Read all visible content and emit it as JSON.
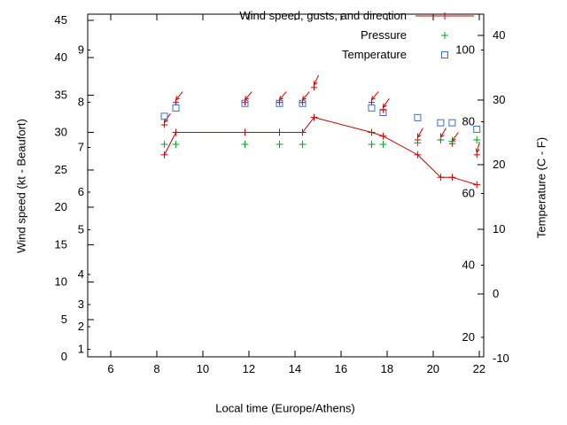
{
  "chart_data": {
    "type": "line",
    "title": "",
    "xlabel": "Local time (Europe/Athens)",
    "ylabel": "Wind speed (kt - Beaufort)",
    "y2label": "Temperature (C - F)",
    "xlim": [
      5,
      22.2
    ],
    "x_ticks": [
      6,
      8,
      10,
      12,
      14,
      16,
      18,
      20,
      22
    ],
    "ylim_kt": [
      0,
      45.8
    ],
    "kt_ticks": [
      0,
      5,
      10,
      15,
      20,
      25,
      30,
      35,
      40,
      45
    ],
    "beaufort_ticks": [
      {
        "b": "1",
        "kt": 1
      },
      {
        "b": "2",
        "kt": 4
      },
      {
        "b": "3",
        "kt": 7
      },
      {
        "b": "4",
        "kt": 11
      },
      {
        "b": "5",
        "kt": 17
      },
      {
        "b": "6",
        "kt": 22
      },
      {
        "b": "7",
        "kt": 28
      },
      {
        "b": "8",
        "kt": 34
      },
      {
        "b": "9",
        "kt": 41
      }
    ],
    "ylim_c": [
      -9.7,
      43.3
    ],
    "c_ticks": [
      40,
      30,
      20,
      10,
      0,
      -10
    ],
    "f_ticks": [
      100,
      80,
      60,
      40,
      20
    ],
    "grid": false,
    "legend_position": "top-right-inside",
    "colors": {
      "wind": "#d00000",
      "pressure": "#00a020",
      "temperature": "#3c6fd1",
      "axis": "#000000",
      "background": "#ffffff"
    },
    "series": {
      "wind": {
        "name": "Wind speed, gusts, and direction",
        "x": [
          8.33,
          8.83,
          11.83,
          13.33,
          14.33,
          14.83,
          17.33,
          17.83,
          19.33,
          20.33,
          20.83,
          21.9
        ],
        "speed": [
          27,
          30,
          30,
          30,
          30,
          32,
          30,
          29.5,
          27,
          24,
          24,
          23
        ],
        "gust": [
          31,
          34,
          34,
          34,
          34,
          36,
          34,
          33,
          29,
          29,
          28.5,
          27
        ],
        "dir_deg": [
          215,
          220,
          220,
          220,
          220,
          205,
          220,
          215,
          210,
          210,
          215,
          195
        ]
      },
      "pressure": {
        "name": "Pressure",
        "x": [
          8.33,
          8.83,
          11.83,
          13.33,
          14.33,
          17.33,
          17.83,
          19.33,
          20.33,
          20.83,
          21.9
        ],
        "y_kt": [
          28.4,
          28.4,
          28.4,
          28.4,
          28.4,
          28.4,
          28.4,
          28.6,
          29,
          28.8,
          29
        ]
      },
      "temperature": {
        "name": "Temperature",
        "x": [
          8.33,
          8.83,
          11.83,
          13.33,
          14.33,
          17.33,
          17.83,
          19.33,
          20.33,
          20.83,
          21.9
        ],
        "c": [
          27.5,
          28.8,
          29.5,
          29.5,
          29.5,
          28.8,
          28.1,
          27.3,
          26.5,
          26.5,
          25.5
        ]
      }
    }
  }
}
